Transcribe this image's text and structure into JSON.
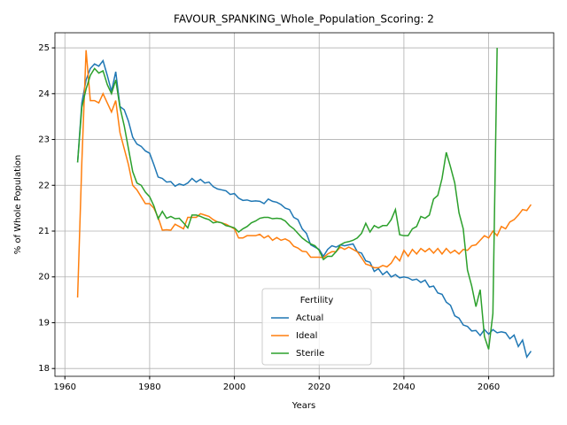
{
  "chart_data": {
    "type": "line",
    "title": "FAVOUR_SPANKING_Whole_Population_Scoring: 2",
    "x_label": "Years",
    "y_label": "% of Whole Population",
    "legend_title": "Fertility",
    "legend": "lower center",
    "x": [
      1963,
      1964,
      1965,
      1966,
      1967,
      1968,
      1969,
      1970,
      1971,
      1972,
      1973,
      1974,
      1975,
      1976,
      1977,
      1978,
      1979,
      1980,
      1981,
      1982,
      1983,
      1984,
      1985,
      1986,
      1987,
      1988,
      1989,
      1990,
      1991,
      1992,
      1993,
      1994,
      1995,
      1996,
      1997,
      1998,
      1999,
      2000,
      2001,
      2002,
      2003,
      2004,
      2005,
      2006,
      2007,
      2008,
      2009,
      2010,
      2011,
      2012,
      2013,
      2014,
      2015,
      2016,
      2017,
      2018,
      2019,
      2020,
      2021,
      2022,
      2023,
      2024,
      2025,
      2026,
      2027,
      2028,
      2029,
      2030,
      2031,
      2032,
      2033,
      2034,
      2035,
      2036,
      2037,
      2038,
      2039,
      2040,
      2041,
      2042,
      2043,
      2044,
      2045,
      2046,
      2047,
      2048,
      2049,
      2050,
      2051,
      2052,
      2053,
      2054,
      2055,
      2056,
      2057,
      2058,
      2059,
      2060,
      2061,
      2062,
      2063,
      2064,
      2065,
      2066,
      2067,
      2068,
      2069,
      2070
    ],
    "series": [
      {
        "name": "Actual",
        "color": "#1f77b4",
        "values": [
          22.5,
          23.8,
          24.3,
          24.55,
          24.65,
          24.6,
          24.72,
          24.4,
          24.05,
          24.48,
          23.72,
          23.65,
          23.4,
          23.05,
          22.9,
          22.85,
          22.75,
          22.7,
          22.45,
          22.18,
          22.15,
          22.07,
          22.08,
          21.98,
          22.03,
          22.0,
          22.05,
          22.15,
          22.07,
          22.13,
          22.05,
          22.07,
          21.97,
          21.92,
          21.9,
          21.88,
          21.8,
          21.82,
          21.72,
          21.67,
          21.68,
          21.65,
          21.66,
          21.65,
          21.6,
          21.7,
          21.65,
          21.63,
          21.58,
          21.5,
          21.47,
          21.3,
          21.25,
          21.05,
          20.95,
          20.7,
          20.65,
          20.6,
          20.45,
          20.6,
          20.68,
          20.65,
          20.7,
          20.68,
          20.7,
          20.72,
          20.55,
          20.52,
          20.35,
          20.32,
          20.12,
          20.18,
          20.05,
          20.12,
          20.0,
          20.05,
          19.98,
          20.0,
          19.98,
          19.93,
          19.95,
          19.88,
          19.93,
          19.78,
          19.8,
          19.65,
          19.62,
          19.45,
          19.38,
          19.15,
          19.1,
          18.95,
          18.92,
          18.82,
          18.83,
          18.72,
          18.85,
          18.75,
          18.85,
          18.78,
          18.8,
          18.78,
          18.65,
          18.73,
          18.48,
          18.62,
          18.25,
          18.38
        ]
      },
      {
        "name": "Ideal",
        "color": "#ff7f0e",
        "values": [
          19.55,
          22.5,
          24.95,
          23.85,
          23.85,
          23.8,
          24.0,
          23.8,
          23.6,
          23.85,
          23.15,
          22.8,
          22.45,
          22.0,
          21.9,
          21.75,
          21.6,
          21.6,
          21.5,
          21.3,
          21.02,
          21.03,
          21.02,
          21.15,
          21.1,
          21.05,
          21.3,
          21.3,
          21.3,
          21.38,
          21.35,
          21.32,
          21.25,
          21.2,
          21.18,
          21.15,
          21.1,
          21.05,
          20.85,
          20.85,
          20.9,
          20.9,
          20.9,
          20.93,
          20.85,
          20.9,
          20.8,
          20.86,
          20.8,
          20.83,
          20.78,
          20.67,
          20.63,
          20.56,
          20.55,
          20.43,
          20.43,
          20.43,
          20.42,
          20.5,
          20.55,
          20.55,
          20.65,
          20.6,
          20.65,
          20.6,
          20.55,
          20.42,
          20.28,
          20.25,
          20.2,
          20.2,
          20.25,
          20.22,
          20.3,
          20.45,
          20.35,
          20.58,
          20.45,
          20.6,
          20.5,
          20.62,
          20.55,
          20.62,
          20.52,
          20.62,
          20.5,
          20.62,
          20.52,
          20.58,
          20.5,
          20.6,
          20.58,
          20.68,
          20.7,
          20.8,
          20.9,
          20.85,
          21.0,
          20.9,
          21.1,
          21.05,
          21.2,
          21.25,
          21.35,
          21.47,
          21.45,
          21.58
        ]
      },
      {
        "name": "Sterile",
        "color": "#2ca02c",
        "values": [
          22.5,
          23.7,
          24.1,
          24.4,
          24.55,
          24.45,
          24.5,
          24.2,
          24.0,
          24.3,
          23.7,
          23.3,
          22.8,
          22.3,
          22.05,
          22.0,
          21.85,
          21.75,
          21.55,
          21.27,
          21.43,
          21.28,
          21.32,
          21.27,
          21.28,
          21.18,
          21.07,
          21.35,
          21.35,
          21.32,
          21.28,
          21.25,
          21.18,
          21.2,
          21.18,
          21.12,
          21.1,
          21.07,
          20.98,
          21.05,
          21.1,
          21.18,
          21.22,
          21.28,
          21.3,
          21.3,
          21.27,
          21.28,
          21.27,
          21.22,
          21.12,
          21.05,
          20.95,
          20.85,
          20.78,
          20.72,
          20.68,
          20.58,
          20.38,
          20.45,
          20.45,
          20.55,
          20.7,
          20.75,
          20.77,
          20.8,
          20.85,
          20.95,
          21.17,
          20.98,
          21.12,
          21.07,
          21.12,
          21.12,
          21.25,
          21.47,
          20.92,
          20.9,
          20.9,
          21.05,
          21.1,
          21.32,
          21.28,
          21.35,
          21.7,
          21.78,
          22.15,
          22.72,
          22.4,
          22.05,
          21.4,
          21.05,
          20.15,
          19.8,
          19.35,
          19.72,
          18.7,
          18.42,
          19.2,
          25.0,
          null,
          null,
          null,
          null,
          null,
          null,
          null,
          null
        ]
      }
    ],
    "xlim": [
      1957.65,
      2075.35
    ],
    "ylim": [
      17.83,
      25.33
    ],
    "xticks": [
      1960,
      1980,
      2000,
      2020,
      2040,
      2060
    ],
    "yticks": [
      18,
      19,
      20,
      21,
      22,
      23,
      24,
      25
    ],
    "grid": true
  }
}
